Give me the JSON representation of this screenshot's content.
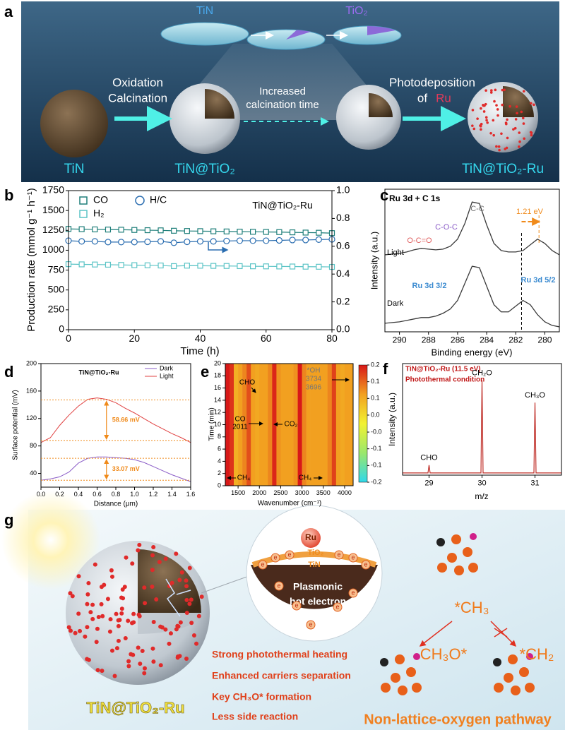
{
  "panel_labels": [
    "a",
    "b",
    "c",
    "d",
    "e",
    "f",
    "g"
  ],
  "panel_a": {
    "disc_labels": [
      "TiN",
      "TiO₂"
    ],
    "step1": [
      "Oxidation",
      "Calcination"
    ],
    "step2": [
      "Increased",
      "calcination time"
    ],
    "step3": [
      "Photodeposition",
      "of",
      "Ru"
    ],
    "materials": [
      "TiN",
      "TiN@TiO₂",
      "TiN@TiO₂-Ru"
    ]
  },
  "chart_data": [
    {
      "type": "line",
      "annotation": "TiN@TiO₂-Ru",
      "x": [
        0,
        4,
        8,
        12,
        16,
        20,
        24,
        28,
        32,
        36,
        40,
        44,
        48,
        52,
        56,
        60,
        64,
        68,
        72,
        76,
        80
      ],
      "xlim": [
        0,
        80
      ],
      "xticks": [
        0,
        20,
        40,
        60,
        80
      ],
      "ylim": [
        0,
        1750
      ],
      "yticks": [
        0,
        250,
        500,
        750,
        1000,
        1250,
        1500,
        1750
      ],
      "y2lim": [
        0,
        1
      ],
      "y2ticks": [
        {
          "value": 0,
          "label": "0.0"
        },
        0.2,
        0.4,
        0.6,
        0.8,
        {
          "value": 1,
          "label": "1.0"
        }
      ],
      "xlabel": "Time (h)",
      "ylabel": "Production rate (mmol g⁻¹ h⁻¹)",
      "series": [
        {
          "name": "CO",
          "color": "#1f7f7a",
          "marker": "square",
          "values": [
            1268,
            1265,
            1262,
            1260,
            1258,
            1255,
            1252,
            1250,
            1245,
            1242,
            1240,
            1238,
            1236,
            1234,
            1232,
            1230,
            1228,
            1225,
            1222,
            1220,
            1215
          ]
        },
        {
          "name": "H₂",
          "color": "#5cc4c6",
          "marker": "square",
          "values": [
            825,
            822,
            820,
            818,
            815,
            812,
            810,
            808,
            800,
            806,
            805,
            803,
            802,
            800,
            798,
            797,
            796,
            795,
            793,
            792,
            790
          ]
        },
        {
          "name": "H/C",
          "color": "#2a6db0",
          "marker": "circle",
          "axis": "y2",
          "values": [
            0.64,
            0.635,
            0.635,
            0.63,
            0.63,
            0.63,
            0.632,
            0.635,
            0.625,
            0.632,
            0.635,
            0.635,
            0.638,
            0.64,
            0.64,
            0.64,
            0.642,
            0.645,
            0.645,
            0.648,
            0.65
          ]
        }
      ]
    },
    {
      "type": "line",
      "title": "Ru 3d + C 1s",
      "x": [
        291,
        290.5,
        290,
        289.5,
        289,
        288.5,
        288,
        287.5,
        287,
        286.5,
        286,
        285.5,
        285,
        284.5,
        284,
        283.5,
        283,
        282.5,
        282,
        281.5,
        281,
        280.5,
        280,
        279.5,
        279
      ],
      "xlim": [
        291,
        279
      ],
      "xticks": [
        290,
        288,
        286,
        284,
        282,
        280
      ],
      "ylim": [
        0,
        10
      ],
      "xlabel": "Binding energy (eV)",
      "ylabel": "Intensity (a.u.)",
      "series": [
        {
          "name": "Light",
          "color": "#3a3a3a",
          "values": [
            5.4,
            5.45,
            5.5,
            5.6,
            5.75,
            5.85,
            5.8,
            5.75,
            5.8,
            6.0,
            6.5,
            7.6,
            9.1,
            9.0,
            7.5,
            6.2,
            5.7,
            5.6,
            5.6,
            5.7,
            6.1,
            6.5,
            6.2,
            5.7,
            5.4
          ]
        },
        {
          "name": "Dark",
          "color": "#3a3a3a",
          "values": [
            0.6,
            0.65,
            0.7,
            0.8,
            0.9,
            1.0,
            1.0,
            1.1,
            1.3,
            1.6,
            2.2,
            3.4,
            4.6,
            4.5,
            3.2,
            1.9,
            1.4,
            1.4,
            1.8,
            2.2,
            1.9,
            1.2,
            0.7,
            0.45,
            0.35
          ]
        }
      ],
      "reference_lines": [
        281.6,
        280.4
      ],
      "annotations": [
        "C-C",
        "C-O-C",
        "O-C=O",
        "1.21 eV",
        "Ru 3d 3/2",
        "Ru 3d 5/2"
      ]
    },
    {
      "type": "line",
      "title": "TiN@TiO₂-Ru",
      "x": [
        0,
        0.1,
        0.2,
        0.3,
        0.4,
        0.5,
        0.6,
        0.7,
        0.8,
        0.9,
        1.0,
        1.1,
        1.2,
        1.3,
        1.4,
        1.5,
        1.6
      ],
      "xlim": [
        0,
        1.6
      ],
      "xticks": [
        {
          "value": 0,
          "label": "0.0"
        },
        0.2,
        0.4,
        0.6,
        0.8,
        {
          "value": 1,
          "label": "1.0"
        },
        1.2,
        1.4,
        1.6
      ],
      "ylim": [
        20,
        200
      ],
      "yticks": [
        40,
        80,
        120,
        160,
        200
      ],
      "xlabel": "Distance (μm)",
      "ylabel": "Surface potential (mV)",
      "series": [
        {
          "name": "Dark",
          "color": "#8a5cc7",
          "values": [
            30,
            32,
            35,
            42,
            55,
            62,
            64,
            64,
            63,
            62,
            60,
            56,
            50,
            44,
            38,
            33,
            28
          ]
        },
        {
          "name": "Light",
          "color": "#e04040",
          "values": [
            85,
            92,
            110,
            125,
            138,
            148,
            150,
            148,
            143,
            135,
            128,
            120,
            112,
            105,
            98,
            92,
            85
          ]
        }
      ],
      "reference_lines": [
        147,
        88,
        62,
        30
      ],
      "annotations": [
        "58.66 mV",
        "33.07 mV"
      ]
    },
    {
      "type": "heatmap",
      "x": [
        1250,
        1350,
        1450,
        1550,
        1650,
        1750,
        1850,
        1950,
        2050,
        2150,
        2250,
        2350,
        2450,
        2550,
        2650,
        2750,
        2850,
        2950,
        3050,
        3150,
        3250,
        3350,
        3450,
        3550,
        3650,
        3750,
        3850,
        3950,
        4050,
        4150
      ],
      "values": [
        0.2,
        0.18,
        0.08,
        0.1,
        0.12,
        0.16,
        0.1,
        0.09,
        0.1,
        0.1,
        0.12,
        0.19,
        0.11,
        0.1,
        0.1,
        0.1,
        0.11,
        0.2,
        0.12,
        0.1,
        0.1,
        0.1,
        0.1,
        0.1,
        0.12,
        0.17,
        0.1,
        0.09,
        0.1,
        0.1
      ],
      "xlim": [
        1200,
        4200
      ],
      "xticks": [
        1500,
        2000,
        2500,
        3000,
        3500,
        4000
      ],
      "ylim": [
        0,
        20
      ],
      "yticks": [
        0,
        2,
        4,
        6,
        8,
        10,
        12,
        14,
        16,
        18,
        20
      ],
      "clim": [
        -0.2,
        0.2
      ],
      "cticks": [
        0.2,
        {
          "value": 0.143,
          "label": "0.1"
        },
        {
          "value": 0.086,
          "label": "0.1"
        },
        {
          "value": 0.029,
          "label": "0.0"
        },
        {
          "value": -0.029,
          "label": "-0.0"
        },
        {
          "value": -0.086,
          "label": "-0.1"
        },
        {
          "value": -0.143,
          "label": "-0.1"
        },
        -0.2
      ],
      "colormap": [
        "#30d8ea",
        "#9ae86c",
        "#f2f232",
        "#f2a020",
        "#d81818"
      ],
      "xlabel": "Wavenumber (cm⁻¹)",
      "ylabel": "Time (min)",
      "annotations": [
        "CHO",
        "CO",
        "2011",
        "CO₂",
        "*OH",
        "3734",
        "3696",
        "CH₄",
        "CH₄"
      ]
    },
    {
      "type": "line",
      "title": "TiN@TiO₂-Ru  (11.5 eV)",
      "subtitle": "Photothermal condition",
      "x": [
        28.5,
        28.98,
        29,
        29.02,
        29.98,
        30,
        30.02,
        30.98,
        31,
        31.02,
        31.5
      ],
      "xlim": [
        28.5,
        31.5
      ],
      "xticks": [
        29,
        30,
        31
      ],
      "ylim": [
        0,
        1
      ],
      "xlabel": "m/z",
      "ylabel": "Intensity (a.u.)",
      "series": [
        {
          "name": "MS",
          "color": "#c0302a",
          "values": [
            0.02,
            0.02,
            0.09,
            0.02,
            0.02,
            0.85,
            0.02,
            0.02,
            0.65,
            0.02,
            0.02
          ]
        }
      ],
      "peak_labels": [
        "CHO",
        "CH₂O",
        "CH₃O"
      ]
    }
  ],
  "panel_g": {
    "inset": {
      "ru": "Ru",
      "tio2": "TiO₂",
      "tin": "TiN",
      "plasmonic": [
        "Plasmonic",
        "hot electron"
      ],
      "electron": "e"
    },
    "species": [
      "*CH₃",
      "CH₃O*",
      "*CH₂"
    ],
    "advantages": [
      "Strong photothermal heating",
      "Enhanced carriers separation",
      "Key CH₃O* formation",
      "Less side reaction"
    ],
    "material": "TiN@TiO₂-Ru",
    "pathway": "Non-lattice-oxygen pathway"
  }
}
